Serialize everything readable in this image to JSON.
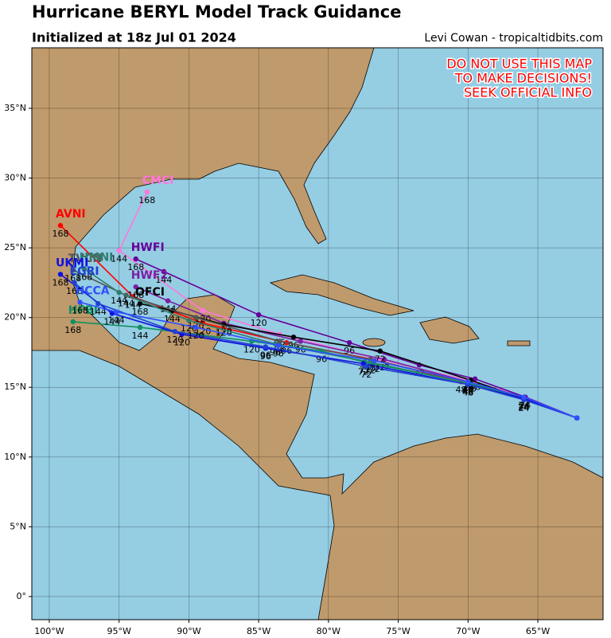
{
  "title": "Hurricane BERYL Model Track Guidance",
  "subtitle": "Initialized at 18z Jul 01 2024",
  "credit": "Levi Cowan - tropicaltidbits.com",
  "warning": [
    "DO NOT USE THIS MAP",
    "TO MAKE DECISIONS!",
    "SEEK OFFICIAL INFO"
  ],
  "map": {
    "lonlim": [
      -101.25,
      -60.33
    ],
    "latlim": [
      -1.66,
      39.34
    ],
    "lonticks": [
      {
        "value": -100,
        "label": "100°W"
      },
      {
        "value": -95,
        "label": "95°W"
      },
      {
        "value": -90,
        "label": "90°W"
      },
      {
        "value": -85,
        "label": "85°W"
      },
      {
        "value": -80,
        "label": "80°W"
      },
      {
        "value": -75,
        "label": "75°W"
      },
      {
        "value": -70,
        "label": "70°W"
      },
      {
        "value": -65,
        "label": "65°W"
      }
    ],
    "latticks": [
      {
        "value": 0,
        "label": "0°"
      },
      {
        "value": 5,
        "label": "5°N"
      },
      {
        "value": 10,
        "label": "10°N"
      },
      {
        "value": 15,
        "label": "15°N"
      },
      {
        "value": 20,
        "label": "20°N"
      },
      {
        "value": 25,
        "label": "25°N"
      },
      {
        "value": 30,
        "label": "30°N"
      },
      {
        "value": 35,
        "label": "35°N"
      }
    ],
    "grid": true,
    "tracks": [
      {
        "name": "AVNI",
        "color": "#ff0000",
        "lon": [
          -62.2,
          -66.0,
          -70.5,
          -76.8,
          -83.0,
          -89.0,
          -94.0,
          -99.2
        ],
        "lat": [
          12.8,
          14.2,
          15.4,
          17.0,
          18.2,
          19.6,
          21.5,
          26.6
        ],
        "hours": [
          0,
          24,
          48,
          72,
          96,
          120,
          144,
          168
        ]
      },
      {
        "name": "CMCI",
        "color": "#ff77dd",
        "lon": [
          -62.2,
          -65.9,
          -70.0,
          -76.3,
          -83.5,
          -89.0,
          -95.0,
          -93.0
        ],
        "lat": [
          12.8,
          14.3,
          15.5,
          17.0,
          18.8,
          20.5,
          24.8,
          29.0
        ],
        "hours": [
          0,
          24,
          48,
          72,
          96,
          120,
          144,
          168
        ]
      },
      {
        "name": "HWFI",
        "color": "#660099",
        "lon": [
          -62.2,
          -65.9,
          -69.5,
          -73.5,
          -78.5,
          -85.0,
          -91.8,
          -93.8
        ],
        "lat": [
          12.8,
          14.3,
          15.6,
          16.6,
          18.2,
          20.2,
          23.3,
          24.2
        ],
        "hours": [
          0,
          24,
          48,
          72,
          96,
          120,
          144,
          168
        ]
      },
      {
        "name": "HWF2",
        "color": "#7a1fa2",
        "lon": [
          -62.2,
          -66.0,
          -70.0,
          -76.0,
          -82.0,
          -87.5,
          -91.5,
          -93.8
        ],
        "lat": [
          12.8,
          14.2,
          15.4,
          17.0,
          18.3,
          19.6,
          21.2,
          22.2
        ],
        "hours": [
          0,
          24,
          48,
          72,
          96,
          120,
          144,
          168
        ]
      },
      {
        "name": "OFCI",
        "color": "#000000",
        "lon": [
          -62.2,
          -66.0,
          -69.8,
          -76.3,
          -82.5,
          -87.5,
          -91.2,
          -93.5
        ],
        "lat": [
          12.8,
          14.2,
          15.5,
          17.6,
          18.6,
          19.5,
          20.5,
          21.0
        ],
        "hours": [
          0,
          24,
          48,
          72,
          96,
          120,
          144,
          168
        ]
      },
      {
        "name": "TVCN",
        "color": "#555555",
        "lon": [
          -62.2,
          -66.0,
          -70.0,
          -77.0,
          -83.5,
          -89.5,
          -94.5,
          -98.3
        ],
        "lat": [
          12.8,
          14.2,
          15.4,
          17.0,
          18.3,
          20.0,
          21.6,
          23.4
        ],
        "hours": [
          0,
          24,
          48,
          72,
          96,
          120,
          144,
          168
        ]
      },
      {
        "name": "HMNI",
        "color": "#2e7d6e",
        "lon": [
          -62.2,
          -66.0,
          -70.0,
          -77.0,
          -83.8,
          -90.0,
          -95.0,
          -97.5
        ],
        "lat": [
          12.8,
          14.2,
          15.3,
          16.8,
          18.1,
          19.8,
          21.8,
          23.5
        ],
        "hours": [
          0,
          24,
          48,
          72,
          96,
          120,
          144,
          168
        ]
      },
      {
        "name": "HFBI",
        "color": "#109060",
        "lon": [
          -62.2,
          -66.0,
          -70.0,
          -77.4,
          -80.5,
          -85.5,
          -93.5,
          -98.3
        ],
        "lat": [
          12.8,
          14.2,
          15.3,
          16.8,
          17.6,
          18.3,
          19.3,
          19.7
        ],
        "hours": [
          0,
          24,
          48,
          72,
          96,
          120,
          144,
          168
        ]
      },
      {
        "name": "UKMI",
        "color": "#1010e0",
        "lon": [
          -62.2,
          -66.0,
          -70.0,
          -77.5,
          -84.5,
          -90.5,
          -95.5,
          -99.2
        ],
        "lat": [
          12.8,
          14.2,
          15.2,
          16.7,
          17.8,
          18.8,
          20.3,
          23.1
        ],
        "hours": [
          0,
          24,
          48,
          72,
          96,
          120,
          144,
          168
        ]
      },
      {
        "name": "EGRI",
        "color": "#2040d0",
        "lon": [
          -62.2,
          -66.0,
          -70.0,
          -77.3,
          -84.5,
          -91.0,
          -96.5,
          -98.2
        ],
        "lat": [
          12.8,
          14.1,
          15.2,
          16.5,
          17.9,
          19.0,
          21.0,
          22.5
        ],
        "hours": [
          0,
          24,
          48,
          72,
          96,
          120,
          144,
          168
        ]
      },
      {
        "name": "HCCA",
        "color": "#3050ff",
        "lon": [
          -62.2,
          -66.0,
          -70.0,
          -76.7,
          -83.6,
          -89.5,
          -95.2,
          -97.8
        ],
        "lat": [
          12.8,
          14.3,
          15.4,
          16.9,
          18.0,
          19.3,
          20.4,
          21.1
        ],
        "hours": [
          0,
          24,
          48,
          72,
          96,
          120,
          144,
          168
        ]
      }
    ]
  }
}
